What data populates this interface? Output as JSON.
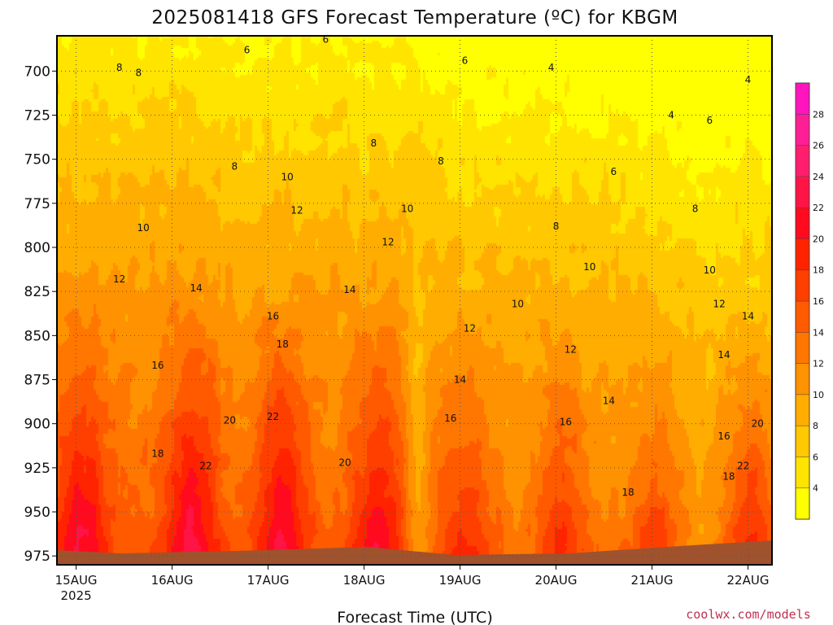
{
  "chart_data": {
    "type": "heatmap",
    "title": "2025081418 GFS Forecast Temperature (ºC) for KBGM",
    "xlabel": "Forecast Time (UTC)",
    "ylabel": "",
    "x_ticks": [
      "15AUG",
      "16AUG",
      "17AUG",
      "18AUG",
      "19AUG",
      "20AUG",
      "21AUG",
      "22AUG"
    ],
    "x_year": "2025",
    "y_ticks": [
      700,
      725,
      750,
      775,
      800,
      825,
      850,
      875,
      900,
      925,
      950,
      975
    ],
    "ylim": [
      980,
      680
    ],
    "xlim": [
      -0.2,
      7.25
    ],
    "colorbar": {
      "levels": [
        2,
        4,
        6,
        8,
        10,
        12,
        14,
        16,
        18,
        20,
        22,
        24,
        26,
        28,
        30
      ],
      "tick_labels": [
        "4",
        "6",
        "8",
        "10",
        "12",
        "14",
        "16",
        "18",
        "20",
        "22",
        "24",
        "26",
        "28"
      ],
      "colors": [
        "#ffff00",
        "#ffe400",
        "#ffc800",
        "#ffad00",
        "#ff9200",
        "#ff7600",
        "#ff5a00",
        "#ff3f00",
        "#ff2300",
        "#ff0a1e",
        "#ff1446",
        "#ff1e6e",
        "#ff1e96",
        "#ff14be"
      ]
    },
    "contour_labels": [
      {
        "x": 0.45,
        "p": 698,
        "text": "8"
      },
      {
        "x": 0.65,
        "p": 701,
        "text": "8"
      },
      {
        "x": 1.78,
        "p": 688,
        "text": "6"
      },
      {
        "x": 2.6,
        "p": 682,
        "text": "6"
      },
      {
        "x": 4.05,
        "p": 694,
        "text": "6"
      },
      {
        "x": 4.95,
        "p": 698,
        "text": "4"
      },
      {
        "x": 7.0,
        "p": 705,
        "text": "4"
      },
      {
        "x": 6.2,
        "p": 725,
        "text": "4"
      },
      {
        "x": 6.6,
        "p": 728,
        "text": "6"
      },
      {
        "x": 3.1,
        "p": 741,
        "text": "8"
      },
      {
        "x": 3.8,
        "p": 751,
        "text": "8"
      },
      {
        "x": 1.65,
        "p": 754,
        "text": "8"
      },
      {
        "x": 2.2,
        "p": 760,
        "text": "10"
      },
      {
        "x": 5.6,
        "p": 757,
        "text": "6"
      },
      {
        "x": 6.45,
        "p": 778,
        "text": "8"
      },
      {
        "x": 3.45,
        "p": 778,
        "text": "10"
      },
      {
        "x": 2.3,
        "p": 779,
        "text": "12"
      },
      {
        "x": 0.7,
        "p": 789,
        "text": "10"
      },
      {
        "x": 5.0,
        "p": 788,
        "text": "8"
      },
      {
        "x": 3.25,
        "p": 797,
        "text": "12"
      },
      {
        "x": 5.35,
        "p": 811,
        "text": "10"
      },
      {
        "x": 6.6,
        "p": 813,
        "text": "10"
      },
      {
        "x": 0.45,
        "p": 818,
        "text": "12"
      },
      {
        "x": 1.25,
        "p": 823,
        "text": "14"
      },
      {
        "x": 2.85,
        "p": 824,
        "text": "14"
      },
      {
        "x": 4.6,
        "p": 832,
        "text": "10"
      },
      {
        "x": 6.7,
        "p": 832,
        "text": "12"
      },
      {
        "x": 2.05,
        "p": 839,
        "text": "16"
      },
      {
        "x": 7.0,
        "p": 839,
        "text": "14"
      },
      {
        "x": 4.1,
        "p": 846,
        "text": "12"
      },
      {
        "x": 2.15,
        "p": 855,
        "text": "18"
      },
      {
        "x": 5.15,
        "p": 858,
        "text": "12"
      },
      {
        "x": 6.75,
        "p": 861,
        "text": "14"
      },
      {
        "x": 0.85,
        "p": 867,
        "text": "16"
      },
      {
        "x": 4.0,
        "p": 875,
        "text": "14"
      },
      {
        "x": 5.55,
        "p": 887,
        "text": "14"
      },
      {
        "x": 1.6,
        "p": 898,
        "text": "20"
      },
      {
        "x": 2.05,
        "p": 896,
        "text": "22"
      },
      {
        "x": 3.9,
        "p": 897,
        "text": "16"
      },
      {
        "x": 5.1,
        "p": 899,
        "text": "16"
      },
      {
        "x": 7.1,
        "p": 900,
        "text": "20"
      },
      {
        "x": 0.85,
        "p": 917,
        "text": "18"
      },
      {
        "x": 1.35,
        "p": 924,
        "text": "22"
      },
      {
        "x": 2.8,
        "p": 922,
        "text": "20"
      },
      {
        "x": 6.75,
        "p": 907,
        "text": "16"
      },
      {
        "x": 6.95,
        "p": 924,
        "text": "22"
      },
      {
        "x": 6.8,
        "p": 930,
        "text": "18"
      },
      {
        "x": 5.75,
        "p": 939,
        "text": "18"
      }
    ]
  }
}
